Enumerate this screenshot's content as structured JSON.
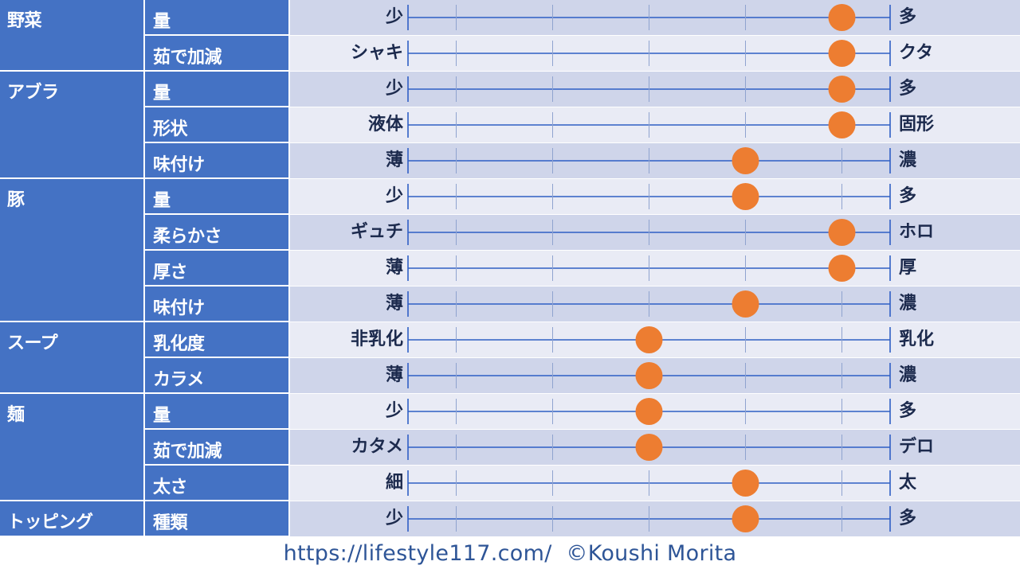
{
  "colors": {
    "header_fill": "#4472c4",
    "row_dark": "#cfd5ea",
    "row_light": "#e9ebf5",
    "line": "#2f5fc4",
    "marker": "#ed7d31",
    "text": "#1c2a4d",
    "footer": "#2e5597"
  },
  "footer": {
    "url": "https://lifestyle117.com/",
    "credit": "©Koushi Morita"
  },
  "chart_data": {
    "type": "scatter",
    "scale": {
      "min": 0,
      "max": 5,
      "ticks": [
        0,
        0.5,
        1.5,
        2.5,
        3.5,
        4.5,
        5
      ]
    },
    "groups": [
      {
        "category": "野菜",
        "rows": [
          {
            "item": "量",
            "left": "少",
            "right": "多",
            "value": 4.5
          },
          {
            "item": "茹で加減",
            "left": "シャキ",
            "right": "クタ",
            "value": 4.5
          }
        ]
      },
      {
        "category": "アブラ",
        "rows": [
          {
            "item": "量",
            "left": "少",
            "right": "多",
            "value": 4.5
          },
          {
            "item": "形状",
            "left": "液体",
            "right": "固形",
            "value": 4.5
          },
          {
            "item": "味付け",
            "left": "薄",
            "right": "濃",
            "value": 3.5
          }
        ]
      },
      {
        "category": "豚",
        "rows": [
          {
            "item": "量",
            "left": "少",
            "right": "多",
            "value": 3.5
          },
          {
            "item": "柔らかさ",
            "left": "ギュチ",
            "right": "ホロ",
            "value": 4.5
          },
          {
            "item": "厚さ",
            "left": "薄",
            "right": "厚",
            "value": 4.5
          },
          {
            "item": "味付け",
            "left": "薄",
            "right": "濃",
            "value": 3.5
          }
        ]
      },
      {
        "category": "スープ",
        "rows": [
          {
            "item": "乳化度",
            "left": "非乳化",
            "right": "乳化",
            "value": 2.5
          },
          {
            "item": "カラメ",
            "left": "薄",
            "right": "濃",
            "value": 2.5
          }
        ]
      },
      {
        "category": "麺",
        "rows": [
          {
            "item": "量",
            "left": "少",
            "right": "多",
            "value": 2.5
          },
          {
            "item": "茹で加減",
            "left": "カタメ",
            "right": "デロ",
            "value": 2.5
          },
          {
            "item": "太さ",
            "left": "細",
            "right": "太",
            "value": 3.5
          }
        ]
      },
      {
        "category": "トッピング",
        "rows": [
          {
            "item": "種類",
            "left": "少",
            "right": "多",
            "value": 3.5
          }
        ]
      }
    ]
  }
}
